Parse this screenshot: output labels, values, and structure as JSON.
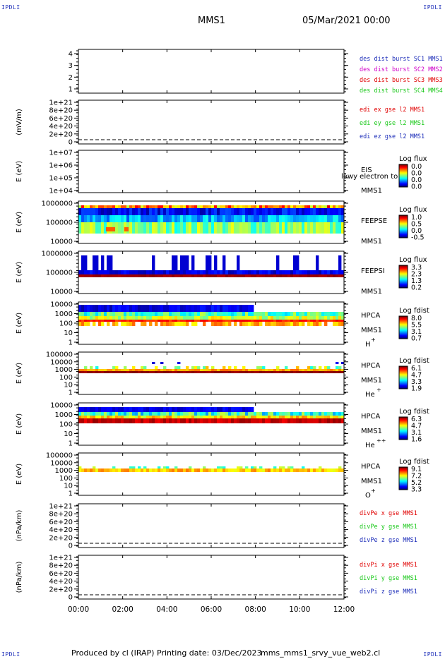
{
  "header": {
    "center_title": "MMS1",
    "date_time": "05/Mar/2021 00:00",
    "corner_tag": "IPDLI"
  },
  "footer": {
    "produced_by": "Produced by cl (IRAP)",
    "printing_date": "Printing date: 03/Dec/2023",
    "file_name": "mms_mms1_srvy_vue_web2.cl"
  },
  "colors": {
    "frame": "#000000",
    "mms1": "#1a2bb8",
    "mms2": "#d000c8",
    "mms3": "#e00000",
    "mms4": "#19c819",
    "x_comp": "#e00000",
    "y_comp": "#19c819",
    "z_comp": "#1a2bb8"
  },
  "chart_data": {
    "type": "heatmap",
    "x_axis": {
      "range": [
        "00:00",
        "12:00"
      ],
      "tick_labels": [
        "00:00",
        "02:00",
        "04:00",
        "06:00",
        "08:00",
        "10:00",
        "12:00"
      ]
    },
    "panels": [
      {
        "id": "des-dist",
        "type": "line",
        "ylabel": "",
        "y_ticks": [
          "4",
          "3",
          "2",
          "1"
        ],
        "ylim": [
          0.5,
          4.5
        ],
        "legend": [
          {
            "label": "des dist burst SC1 MMS1",
            "color": "#1a2bb8"
          },
          {
            "label": "des dist burst SC2 MMS2",
            "color": "#d000c8"
          },
          {
            "label": "des dist burst SC3 MMS3",
            "color": "#e00000"
          },
          {
            "label": "des dist burst SC4 MMS4",
            "color": "#19c819"
          }
        ]
      },
      {
        "id": "edi-e",
        "type": "line",
        "ylabel": "(mV/m)",
        "y_ticks": [
          "1e+21",
          "8e+20",
          "6e+20",
          "4e+20",
          "2e+20",
          "0"
        ],
        "ylim": [
          0,
          1e+21
        ],
        "zero_line": true,
        "legend": [
          {
            "label": "edi ex gse l2 MMS1",
            "color": "#e00000"
          },
          {
            "label": "edi ey gse l2 MMS1",
            "color": "#19c819"
          },
          {
            "label": "edi ez gse l2 MMS1",
            "color": "#1a2bb8"
          }
        ]
      },
      {
        "id": "eis",
        "type": "heatmap",
        "ylabel": "E (eV)",
        "log_y": true,
        "y_ticks": [
          "1e+07",
          "1e+06",
          "1e+05",
          "1e+04"
        ],
        "ylim": [
          10000,
          10000000
        ],
        "instrument": "EIS",
        "spacecraft": "MMS1",
        "overlay_text": "lowy electron to",
        "colorbar_title": "Log flux",
        "colorbar_ticks": [
          "0.0",
          "0.0",
          "0.0",
          "0.0"
        ]
      },
      {
        "id": "feeps-e",
        "type": "heatmap",
        "ylabel": "E (eV)",
        "log_y": true,
        "y_ticks": [
          "1000000",
          "100000",
          "10000"
        ],
        "ylim": [
          10000,
          1000000
        ],
        "instrument": "FEEPSE",
        "spacecraft": "MMS1",
        "colorbar_title": "Log flux",
        "colorbar_ticks": [
          "1.0",
          "0.5",
          "0.0",
          "-0.5"
        ]
      },
      {
        "id": "feeps-i",
        "type": "heatmap",
        "ylabel": "E (eV)",
        "log_y": true,
        "y_ticks": [
          "1000000",
          "100000",
          "10000"
        ],
        "ylim": [
          10000,
          1000000
        ],
        "instrument": "FEEPSI",
        "spacecraft": "MMS1",
        "colorbar_title": "Log flux",
        "colorbar_ticks": [
          "3.3",
          "2.3",
          "1.3",
          "0.2"
        ]
      },
      {
        "id": "hpca-h",
        "type": "heatmap",
        "ylabel": "E (eV)",
        "log_y": true,
        "y_ticks": [
          "10000",
          "1000",
          "100",
          "10",
          "1"
        ],
        "ylim": [
          1,
          40000
        ],
        "instrument": "HPCA",
        "spacecraft": "MMS1",
        "species": "H",
        "charge": "+",
        "colorbar_title": "Log fdist",
        "colorbar_ticks": [
          "8.0",
          "5.5",
          "3.1",
          "0.7"
        ]
      },
      {
        "id": "hpca-he",
        "type": "heatmap",
        "ylabel": "E (eV)",
        "log_y": true,
        "y_ticks": [
          "100000",
          "10000",
          "1000",
          "100",
          "10",
          "1"
        ],
        "ylim": [
          1,
          100000
        ],
        "instrument": "HPCA",
        "spacecraft": "MMS1",
        "species": "He",
        "charge": "+",
        "colorbar_title": "Log fdist",
        "colorbar_ticks": [
          "6.1",
          "4.7",
          "3.3",
          "1.9"
        ]
      },
      {
        "id": "hpca-hepp",
        "type": "heatmap",
        "ylabel": "E (eV)",
        "log_y": true,
        "y_ticks": [
          "10000",
          "1000",
          "100",
          "10",
          "1"
        ],
        "ylim": [
          1,
          40000
        ],
        "instrument": "HPCA",
        "spacecraft": "MMS1",
        "species": "He",
        "charge": "++",
        "colorbar_title": "Log fdist",
        "colorbar_ticks": [
          "6.3",
          "4.7",
          "3.1",
          "1.6"
        ]
      },
      {
        "id": "hpca-o",
        "type": "heatmap",
        "ylabel": "E (eV)",
        "log_y": true,
        "y_ticks": [
          "100000",
          "10000",
          "1000",
          "100",
          "10",
          "1"
        ],
        "ylim": [
          1,
          100000
        ],
        "instrument": "HPCA",
        "spacecraft": "MMS1",
        "species": "O",
        "charge": "+",
        "colorbar_title": "Log fdist",
        "colorbar_ticks": [
          "9.1",
          "7.2",
          "5.2",
          "3.3"
        ]
      },
      {
        "id": "divpe",
        "type": "line",
        "ylabel": "(nPa/km)",
        "y_ticks": [
          "1e+21",
          "8e+20",
          "6e+20",
          "4e+20",
          "2e+20",
          "0"
        ],
        "ylim": [
          0,
          1e+21
        ],
        "zero_line": true,
        "legend": [
          {
            "label": "divPe x gse MMS1",
            "color": "#e00000"
          },
          {
            "label": "divPe y gse MMS1",
            "color": "#19c819"
          },
          {
            "label": "divPe z gse MMS1",
            "color": "#1a2bb8"
          }
        ]
      },
      {
        "id": "divpi",
        "type": "line",
        "ylabel": "(nPa/km)",
        "y_ticks": [
          "1e+21",
          "8e+20",
          "6e+20",
          "4e+20",
          "2e+20",
          "0"
        ],
        "ylim": [
          0,
          1e+21
        ],
        "zero_line": true,
        "legend": [
          {
            "label": "divPi x gse MMS1",
            "color": "#e00000"
          },
          {
            "label": "divPi y gse MMS1",
            "color": "#19c819"
          },
          {
            "label": "divPi z gse MMS1",
            "color": "#1a2bb8"
          }
        ]
      }
    ]
  }
}
